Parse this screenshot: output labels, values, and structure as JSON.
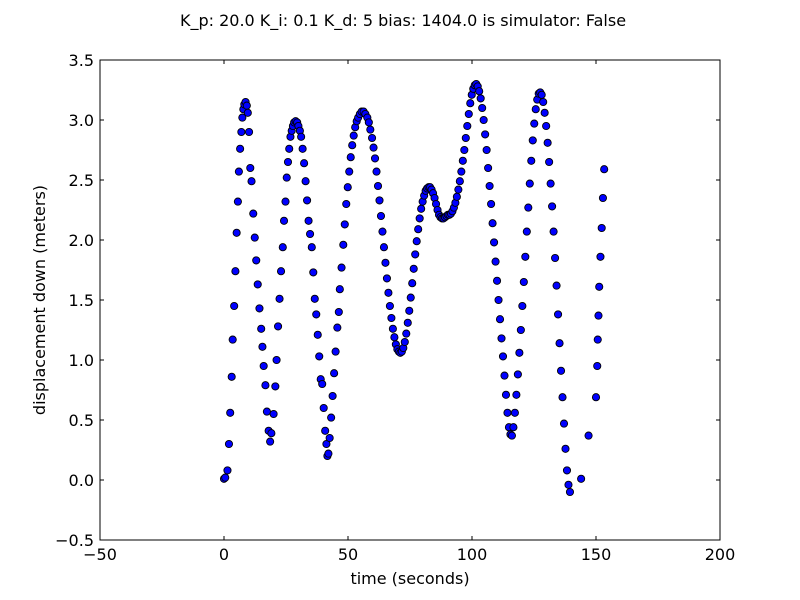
{
  "chart_data": {
    "type": "scatter",
    "title": "K_p: 20.0 K_i: 0.1 K_d: 5 bias: 1404.0 is simulator: False",
    "xlabel": "time (seconds)",
    "ylabel": "displacement down (meters)",
    "xlim": [
      -50,
      200
    ],
    "ylim": [
      -0.5,
      3.5
    ],
    "xticks": [
      -50,
      0,
      50,
      100,
      150,
      200
    ],
    "yticks": [
      -0.5,
      0.0,
      0.5,
      1.0,
      1.5,
      2.0,
      2.5,
      3.0,
      3.5
    ],
    "xtick_labels": [
      "−50",
      "0",
      "50",
      "100",
      "150",
      "200"
    ],
    "ytick_labels": [
      "−0.5",
      "0.0",
      "0.5",
      "1.0",
      "1.5",
      "2.0",
      "2.5",
      "3.0",
      "3.5"
    ],
    "grid": false,
    "legend": "none",
    "marker_color": "#0000ff",
    "marker_edge": "#000000",
    "series": [
      {
        "points": [
          [
            0.0,
            0.01
          ],
          [
            0.5,
            0.02
          ],
          [
            1.4,
            0.08
          ],
          [
            2.0,
            0.3
          ],
          [
            2.5,
            0.56
          ],
          [
            3.1,
            0.86
          ],
          [
            3.5,
            1.17
          ],
          [
            4.1,
            1.45
          ],
          [
            4.6,
            1.74
          ],
          [
            5.1,
            2.06
          ],
          [
            5.6,
            2.32
          ],
          [
            6.0,
            2.57
          ],
          [
            6.5,
            2.76
          ],
          [
            7.0,
            2.9
          ],
          [
            7.4,
            3.02
          ],
          [
            7.8,
            3.09
          ],
          [
            8.2,
            3.13
          ],
          [
            8.7,
            3.15
          ],
          [
            9.2,
            3.12
          ],
          [
            9.6,
            3.06
          ],
          [
            10.1,
            2.9
          ],
          [
            10.6,
            2.6
          ],
          [
            11.1,
            2.49
          ],
          [
            11.8,
            2.22
          ],
          [
            12.4,
            2.02
          ],
          [
            13.0,
            1.83
          ],
          [
            13.6,
            1.63
          ],
          [
            14.3,
            1.43
          ],
          [
            15.0,
            1.26
          ],
          [
            15.5,
            1.11
          ],
          [
            16.0,
            0.95
          ],
          [
            16.7,
            0.79
          ],
          [
            17.3,
            0.57
          ],
          [
            18.0,
            0.41
          ],
          [
            18.6,
            0.32
          ],
          [
            19.1,
            0.39
          ],
          [
            20.0,
            0.55
          ],
          [
            20.7,
            0.78
          ],
          [
            21.2,
            1.0
          ],
          [
            21.8,
            1.28
          ],
          [
            22.4,
            1.51
          ],
          [
            23.0,
            1.74
          ],
          [
            23.7,
            1.94
          ],
          [
            24.2,
            2.16
          ],
          [
            24.8,
            2.32
          ],
          [
            25.3,
            2.52
          ],
          [
            25.8,
            2.65
          ],
          [
            26.3,
            2.76
          ],
          [
            26.8,
            2.86
          ],
          [
            27.3,
            2.91
          ],
          [
            27.8,
            2.95
          ],
          [
            28.3,
            2.98
          ],
          [
            28.9,
            2.99
          ],
          [
            29.5,
            2.98
          ],
          [
            30.0,
            2.95
          ],
          [
            30.6,
            2.91
          ],
          [
            31.1,
            2.86
          ],
          [
            31.7,
            2.76
          ],
          [
            32.3,
            2.64
          ],
          [
            32.9,
            2.49
          ],
          [
            33.5,
            2.33
          ],
          [
            34.1,
            2.16
          ],
          [
            34.7,
            2.05
          ],
          [
            35.4,
            1.94
          ],
          [
            36.0,
            1.73
          ],
          [
            36.6,
            1.51
          ],
          [
            37.2,
            1.38
          ],
          [
            37.8,
            1.21
          ],
          [
            38.4,
            1.03
          ],
          [
            39.0,
            0.84
          ],
          [
            39.6,
            0.8
          ],
          [
            40.2,
            0.6
          ],
          [
            40.8,
            0.41
          ],
          [
            41.3,
            0.3
          ],
          [
            41.7,
            0.2
          ],
          [
            42.1,
            0.22
          ],
          [
            42.6,
            0.35
          ],
          [
            43.2,
            0.52
          ],
          [
            43.8,
            0.7
          ],
          [
            44.4,
            0.89
          ],
          [
            45.0,
            1.07
          ],
          [
            45.7,
            1.27
          ],
          [
            46.3,
            1.4
          ],
          [
            46.7,
            1.59
          ],
          [
            47.4,
            1.77
          ],
          [
            48.1,
            1.96
          ],
          [
            48.7,
            2.13
          ],
          [
            49.3,
            2.3
          ],
          [
            49.9,
            2.44
          ],
          [
            50.5,
            2.57
          ],
          [
            51.1,
            2.69
          ],
          [
            51.7,
            2.79
          ],
          [
            52.3,
            2.87
          ],
          [
            52.9,
            2.94
          ],
          [
            53.5,
            2.99
          ],
          [
            54.1,
            3.02
          ],
          [
            54.8,
            3.05
          ],
          [
            55.5,
            3.07
          ],
          [
            56.3,
            3.07
          ],
          [
            57.0,
            3.05
          ],
          [
            57.8,
            3.02
          ],
          [
            58.4,
            2.98
          ],
          [
            59.0,
            2.92
          ],
          [
            59.7,
            2.85
          ],
          [
            60.3,
            2.77
          ],
          [
            60.9,
            2.68
          ],
          [
            61.5,
            2.57
          ],
          [
            62.1,
            2.45
          ],
          [
            62.7,
            2.33
          ],
          [
            63.3,
            2.2
          ],
          [
            63.9,
            2.07
          ],
          [
            64.5,
            1.94
          ],
          [
            65.1,
            1.81
          ],
          [
            65.7,
            1.68
          ],
          [
            66.3,
            1.56
          ],
          [
            66.9,
            1.45
          ],
          [
            67.5,
            1.35
          ],
          [
            68.1,
            1.26
          ],
          [
            68.7,
            1.19
          ],
          [
            69.3,
            1.13
          ],
          [
            69.9,
            1.09
          ],
          [
            70.5,
            1.07
          ],
          [
            71.1,
            1.06
          ],
          [
            71.7,
            1.07
          ],
          [
            72.3,
            1.1
          ],
          [
            72.9,
            1.15
          ],
          [
            73.5,
            1.22
          ],
          [
            74.1,
            1.31
          ],
          [
            74.7,
            1.41
          ],
          [
            75.3,
            1.52
          ],
          [
            75.9,
            1.64
          ],
          [
            76.5,
            1.76
          ],
          [
            77.1,
            1.88
          ],
          [
            77.7,
            1.99
          ],
          [
            78.3,
            2.09
          ],
          [
            78.9,
            2.18
          ],
          [
            79.5,
            2.26
          ],
          [
            80.1,
            2.32
          ],
          [
            80.7,
            2.37
          ],
          [
            81.3,
            2.41
          ],
          [
            81.9,
            2.43
          ],
          [
            82.5,
            2.44
          ],
          [
            83.1,
            2.44
          ],
          [
            83.7,
            2.42
          ],
          [
            84.3,
            2.39
          ],
          [
            84.9,
            2.35
          ],
          [
            85.5,
            2.3
          ],
          [
            86.1,
            2.25
          ],
          [
            86.7,
            2.21
          ],
          [
            87.3,
            2.19
          ],
          [
            87.9,
            2.18
          ],
          [
            88.5,
            2.18
          ],
          [
            89.1,
            2.19
          ],
          [
            89.7,
            2.2
          ],
          [
            90.3,
            2.21
          ],
          [
            90.9,
            2.21
          ],
          [
            91.5,
            2.22
          ],
          [
            92.1,
            2.24
          ],
          [
            92.7,
            2.27
          ],
          [
            93.3,
            2.31
          ],
          [
            93.9,
            2.36
          ],
          [
            94.5,
            2.42
          ],
          [
            95.1,
            2.49
          ],
          [
            95.7,
            2.57
          ],
          [
            96.3,
            2.66
          ],
          [
            96.9,
            2.75
          ],
          [
            97.5,
            2.85
          ],
          [
            98.1,
            2.95
          ],
          [
            98.7,
            3.05
          ],
          [
            99.3,
            3.14
          ],
          [
            99.9,
            3.21
          ],
          [
            100.5,
            3.26
          ],
          [
            101.1,
            3.29
          ],
          [
            101.7,
            3.3
          ],
          [
            102.3,
            3.28
          ],
          [
            102.9,
            3.24
          ],
          [
            103.5,
            3.18
          ],
          [
            104.1,
            3.1
          ],
          [
            104.7,
            3.0
          ],
          [
            105.3,
            2.88
          ],
          [
            105.9,
            2.75
          ],
          [
            106.5,
            2.6
          ],
          [
            107.1,
            2.45
          ],
          [
            107.7,
            2.3
          ],
          [
            108.3,
            2.14
          ],
          [
            108.9,
            1.98
          ],
          [
            109.5,
            1.82
          ],
          [
            110.1,
            1.66
          ],
          [
            110.7,
            1.5
          ],
          [
            111.3,
            1.34
          ],
          [
            111.9,
            1.18
          ],
          [
            112.5,
            1.03
          ],
          [
            113.1,
            0.87
          ],
          [
            113.7,
            0.71
          ],
          [
            114.3,
            0.56
          ],
          [
            114.9,
            0.44
          ],
          [
            115.5,
            0.38
          ],
          [
            116.1,
            0.37
          ],
          [
            116.7,
            0.44
          ],
          [
            117.3,
            0.56
          ],
          [
            117.9,
            0.71
          ],
          [
            118.5,
            0.88
          ],
          [
            119.1,
            1.06
          ],
          [
            119.7,
            1.25
          ],
          [
            120.3,
            1.45
          ],
          [
            120.9,
            1.65
          ],
          [
            121.5,
            1.86
          ],
          [
            122.1,
            2.07
          ],
          [
            122.7,
            2.27
          ],
          [
            123.3,
            2.47
          ],
          [
            123.9,
            2.66
          ],
          [
            124.5,
            2.83
          ],
          [
            125.1,
            2.97
          ],
          [
            125.7,
            3.09
          ],
          [
            126.3,
            3.17
          ],
          [
            126.9,
            3.22
          ],
          [
            127.5,
            3.23
          ],
          [
            128.1,
            3.21
          ],
          [
            128.7,
            3.15
          ],
          [
            129.3,
            3.06
          ],
          [
            129.9,
            2.95
          ],
          [
            130.5,
            2.81
          ],
          [
            131.1,
            2.65
          ],
          [
            131.7,
            2.47
          ],
          [
            132.3,
            2.28
          ],
          [
            132.9,
            2.07
          ],
          [
            133.5,
            1.85
          ],
          [
            134.1,
            1.62
          ],
          [
            134.7,
            1.38
          ],
          [
            135.3,
            1.14
          ],
          [
            135.9,
            0.91
          ],
          [
            136.5,
            0.69
          ],
          [
            137.1,
            0.47
          ],
          [
            137.7,
            0.26
          ],
          [
            138.3,
            0.08
          ],
          [
            138.9,
            -0.04
          ],
          [
            139.5,
            -0.1
          ],
          [
            144.0,
            0.01
          ],
          [
            147.0,
            0.37
          ],
          [
            150.0,
            0.69
          ],
          [
            150.5,
            0.95
          ],
          [
            150.7,
            1.17
          ],
          [
            151.0,
            1.37
          ],
          [
            151.3,
            1.61
          ],
          [
            151.8,
            1.86
          ],
          [
            152.3,
            2.1
          ],
          [
            152.8,
            2.35
          ],
          [
            153.3,
            2.59
          ]
        ]
      }
    ]
  }
}
